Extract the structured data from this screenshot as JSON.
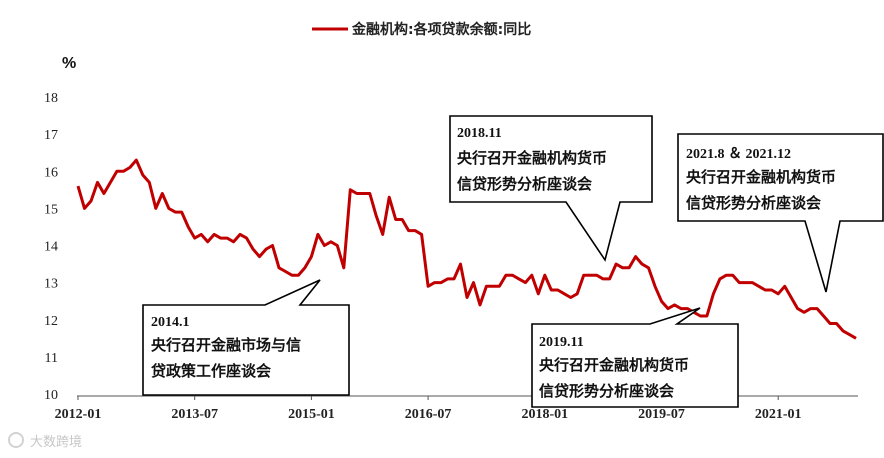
{
  "chart_data": {
    "type": "line",
    "title": "",
    "ylabel": "%",
    "ylim": [
      10,
      18
    ],
    "yticks": [
      "10",
      "11",
      "12",
      "13",
      "14",
      "15",
      "16",
      "17",
      "18"
    ],
    "xticks": [
      {
        "label": "2012-01",
        "index": 0
      },
      {
        "label": "2013-07",
        "index": 18
      },
      {
        "label": "2015-01",
        "index": 36
      },
      {
        "label": "2016-07",
        "index": 54
      },
      {
        "label": "2018-01",
        "index": 72
      },
      {
        "label": "2019-07",
        "index": 90
      },
      {
        "label": "2021-01",
        "index": 108
      }
    ],
    "legend": "top-center",
    "grid": false,
    "series": [
      {
        "name": "金融机构:各项贷款余额:同比",
        "color": "#c00000",
        "values": [
          15.6,
          15.0,
          15.2,
          15.7,
          15.4,
          15.7,
          16.0,
          16.0,
          16.1,
          16.3,
          15.9,
          15.7,
          15.0,
          15.4,
          15.0,
          14.9,
          14.9,
          14.5,
          14.2,
          14.3,
          14.1,
          14.3,
          14.2,
          14.2,
          14.1,
          14.3,
          14.2,
          13.9,
          13.7,
          13.9,
          14.0,
          13.4,
          13.3,
          13.2,
          13.2,
          13.4,
          13.7,
          14.3,
          14.0,
          14.1,
          14.0,
          13.4,
          15.5,
          15.4,
          15.4,
          15.4,
          14.8,
          14.3,
          15.3,
          14.7,
          14.7,
          14.4,
          14.4,
          14.3,
          12.9,
          13.0,
          13.0,
          13.1,
          13.1,
          13.5,
          12.6,
          13.0,
          12.4,
          12.9,
          12.9,
          12.9,
          13.2,
          13.2,
          13.1,
          13.0,
          13.2,
          12.7,
          13.2,
          12.8,
          12.8,
          12.7,
          12.6,
          12.7,
          13.2,
          13.2,
          13.2,
          13.1,
          13.1,
          13.5,
          13.4,
          13.4,
          13.7,
          13.5,
          13.4,
          12.9,
          12.5,
          12.3,
          12.4,
          12.3,
          12.3,
          12.2,
          12.1,
          12.1,
          12.7,
          13.1,
          13.2,
          13.2,
          13.0,
          13.0,
          13.0,
          12.9,
          12.8,
          12.8,
          12.7,
          12.9,
          12.6,
          12.3,
          12.2,
          12.3,
          12.3,
          12.1,
          11.9,
          11.9,
          11.7,
          11.6,
          11.5
        ]
      }
    ],
    "annotations": [
      {
        "date": "2014.1",
        "lines": [
          "央行召开金融市场与信",
          "贷政策工作座谈会"
        ]
      },
      {
        "date": "2018.11",
        "lines": [
          "央行召开金融机构货币",
          "信贷形势分析座谈会"
        ]
      },
      {
        "date": "2019.11",
        "lines": [
          "央行召开金融机构货币",
          "信贷形势分析座谈会"
        ]
      },
      {
        "date": "2021.8 ＆ 2021.12",
        "lines": [
          "央行召开金融机构货币",
          "信贷形势分析座谈会"
        ]
      }
    ]
  },
  "watermark": "大数跨境"
}
